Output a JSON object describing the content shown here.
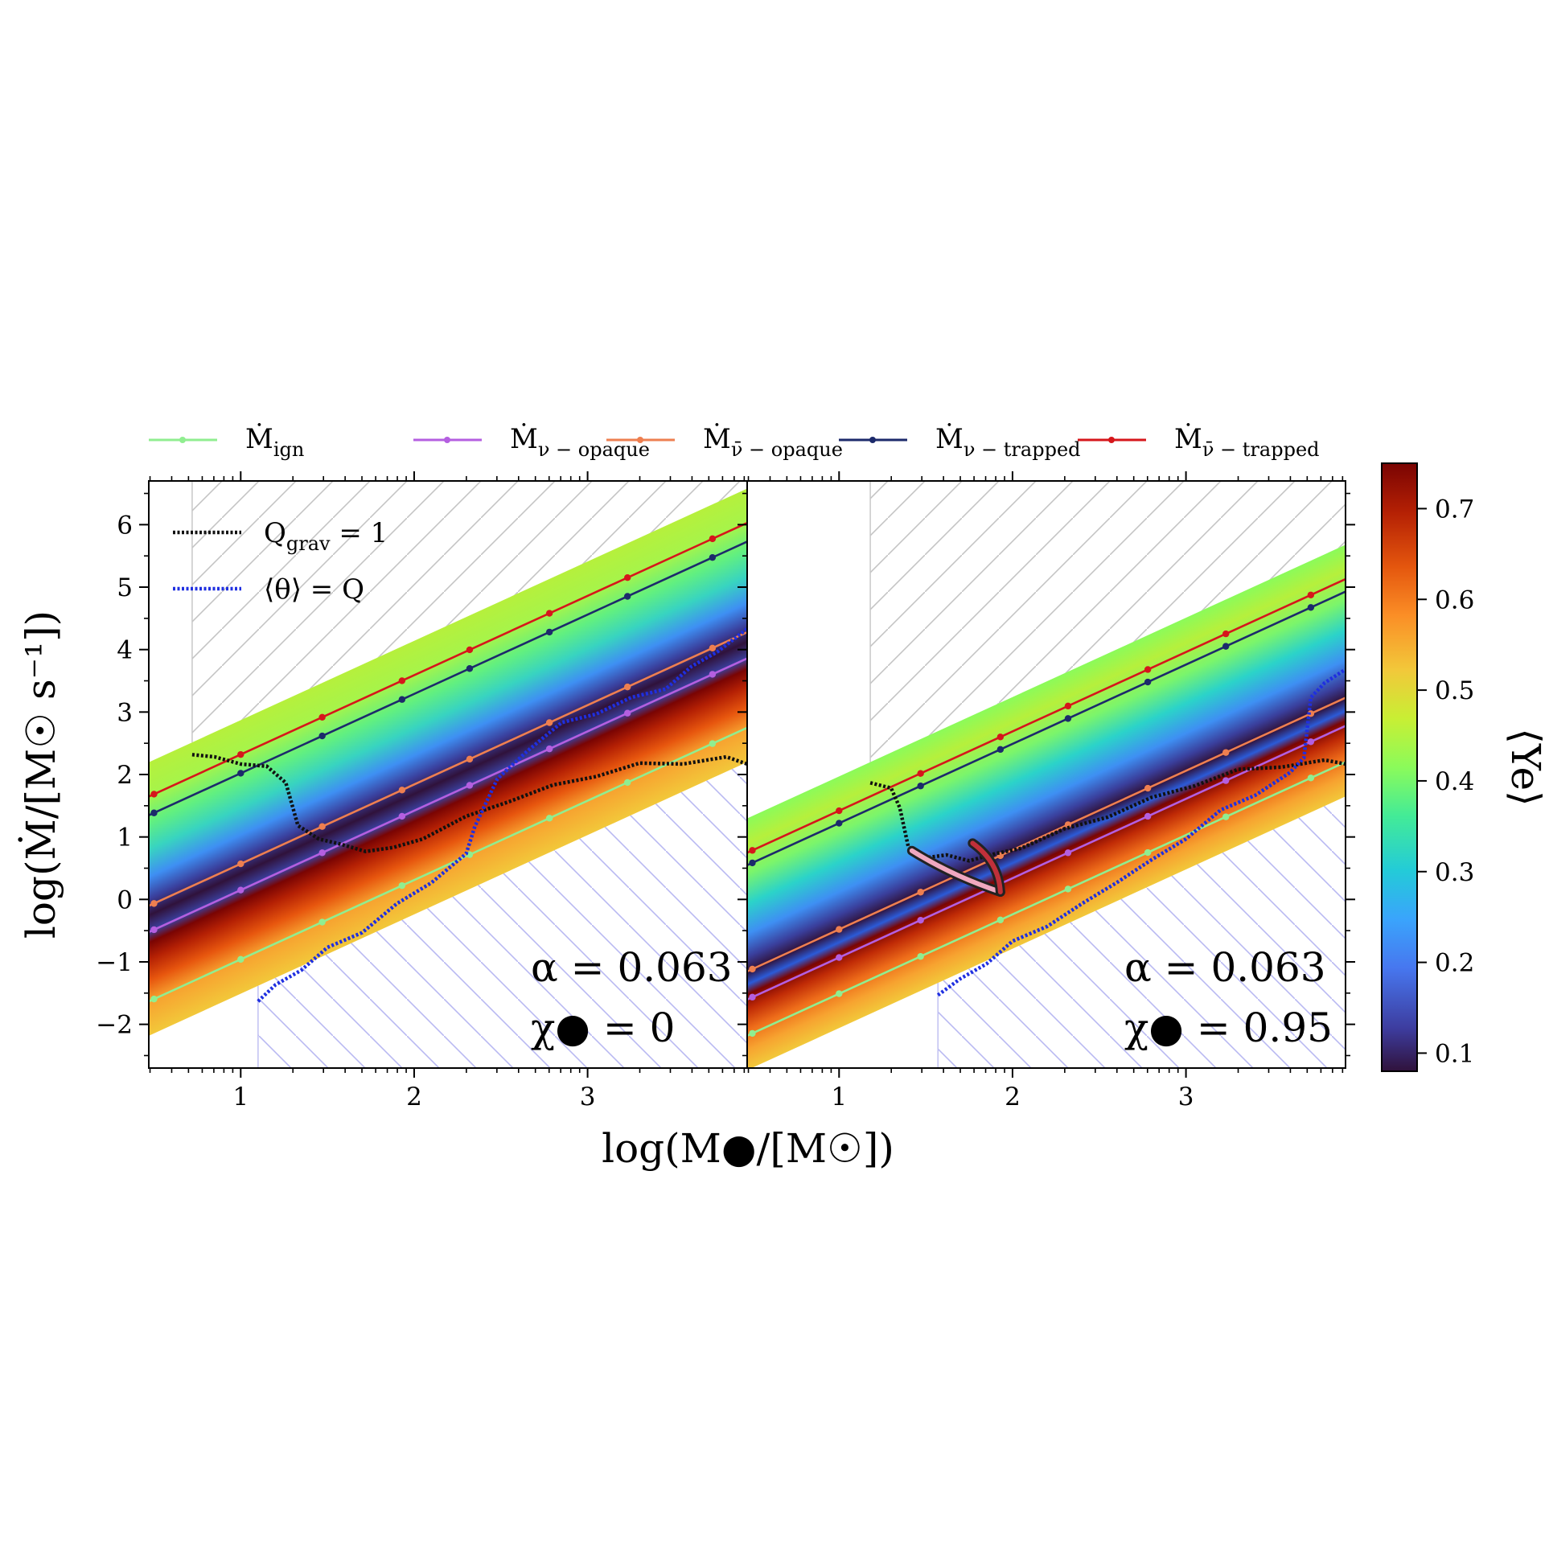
{
  "figure": {
    "ylabel": "log(Ṁ/[M☉ s⁻¹])",
    "xlabel": "log(M●/[M☉])",
    "legend_top": [
      {
        "key": "ign",
        "main": "Ṁ",
        "sub": "ign",
        "color": "#90ee90"
      },
      {
        "key": "nu_opaque",
        "main": "Ṁ",
        "sub": "ν − opaque",
        "color": "#b45fe0"
      },
      {
        "key": "nubar_opaque",
        "main": "Ṁ",
        "sub": "ν̄ − opaque",
        "color": "#ee7f50"
      },
      {
        "key": "nu_trapped",
        "main": "Ṁ",
        "sub": "ν − trapped",
        "color": "#1c2a6b"
      },
      {
        "key": "nubar_trapped",
        "main": "Ṁ",
        "sub": "ν̄ − trapped",
        "color": "#d6161b"
      }
    ],
    "legend_inner": [
      {
        "key": "qgrav",
        "main": "Q",
        "sub": "grav",
        "rhs": " = 1",
        "color": "#111111"
      },
      {
        "key": "theta",
        "main": "⟨θ⟩ = Q",
        "sub": "",
        "rhs": "",
        "color": "#1f2fe0"
      }
    ],
    "colorbar": {
      "label": "⟨Ye⟩",
      "ticks": [
        "0.1",
        "0.2",
        "0.3",
        "0.4",
        "0.5",
        "0.6",
        "0.7"
      ],
      "min": 0.08,
      "max": 0.75
    }
  },
  "chart_data": [
    {
      "type": "heatmap",
      "panel": "left",
      "xlim": [
        0.47,
        3.92
      ],
      "ylim": [
        -2.7,
        6.7
      ],
      "xticks": [
        "1",
        "2",
        "3"
      ],
      "yticks": [
        "−2",
        "−1",
        "0",
        "1",
        "2",
        "3",
        "4",
        "5",
        "6"
      ],
      "annotation_alpha": "α = 0.063",
      "annotation_chi": "χ● = 0",
      "colormap_value": "⟨Ye⟩",
      "series": [
        {
          "name": "Ṁ_ign",
          "slope": 1.27,
          "intercept": -2.23,
          "x": [
            0.5,
            1.0,
            1.47,
            1.93,
            2.32,
            2.78,
            3.23,
            3.72
          ]
        },
        {
          "name": "Ṁ_ν-opaque",
          "slope": 1.27,
          "intercept": -1.12,
          "x": [
            0.5,
            1.0,
            1.47,
            1.93,
            2.32,
            2.78,
            3.23,
            3.72
          ]
        },
        {
          "name": "Ṁ_ν̄-opaque",
          "slope": 1.27,
          "intercept": -0.7,
          "x": [
            0.5,
            1.0,
            1.47,
            1.93,
            2.32,
            2.78,
            3.23,
            3.72
          ]
        },
        {
          "name": "Ṁ_ν-trapped",
          "slope": 1.27,
          "intercept": 0.75,
          "x": [
            0.5,
            1.0,
            1.47,
            1.93,
            2.32,
            2.78,
            3.23,
            3.72
          ]
        },
        {
          "name": "Ṁ_ν̄-trapped",
          "slope": 1.27,
          "intercept": 1.05,
          "x": [
            0.5,
            1.0,
            1.47,
            1.93,
            2.32,
            2.78,
            3.23,
            3.72
          ]
        },
        {
          "name": "Q_grav = 1",
          "x": [
            0.72,
            0.85,
            1.0,
            1.15,
            1.26,
            1.33,
            1.45,
            1.58,
            1.72,
            1.88,
            2.05,
            2.3,
            2.55,
            2.8,
            3.05,
            3.3,
            3.55,
            3.8,
            3.92
          ],
          "y": [
            2.35,
            2.25,
            2.2,
            2.1,
            1.9,
            1.15,
            1.0,
            0.85,
            0.8,
            0.8,
            1.0,
            1.3,
            1.6,
            1.8,
            2.0,
            2.15,
            2.2,
            2.25,
            2.2
          ]
        },
        {
          "name": "⟨θ⟩ = Q",
          "x": [
            1.1,
            1.2,
            1.35,
            1.5,
            1.7,
            1.9,
            2.1,
            2.3,
            2.35,
            2.48,
            2.65,
            2.85,
            3.05,
            3.25,
            3.45,
            3.6,
            3.75,
            3.92
          ],
          "y": [
            -1.6,
            -1.4,
            -1.1,
            -0.8,
            -0.5,
            -0.1,
            0.3,
            0.7,
            1.2,
            1.9,
            2.4,
            2.8,
            3.0,
            3.2,
            3.4,
            3.7,
            4.0,
            4.3
          ]
        }
      ]
    },
    {
      "type": "heatmap",
      "panel": "right",
      "xlim": [
        0.47,
        3.92
      ],
      "ylim": [
        -2.7,
        6.7
      ],
      "xticks": [
        "1",
        "2",
        "3"
      ],
      "annotation_alpha": "α = 0.063",
      "annotation_chi": "χ● = 0.95",
      "colormap_value": "⟨Ye⟩",
      "series": [
        {
          "name": "Ṁ_ign",
          "slope": 1.27,
          "intercept": -2.78,
          "x": [
            0.5,
            1.0,
            1.47,
            1.93,
            2.32,
            2.78,
            3.23,
            3.72
          ]
        },
        {
          "name": "Ṁ_ν-opaque",
          "slope": 1.27,
          "intercept": -2.2,
          "x": [
            0.5,
            1.0,
            1.47,
            1.93,
            2.32,
            2.78,
            3.23,
            3.72
          ]
        },
        {
          "name": "Ṁ_ν̄-opaque",
          "slope": 1.27,
          "intercept": -1.75,
          "x": [
            0.5,
            1.0,
            1.47,
            1.93,
            2.32,
            2.78,
            3.23,
            3.72
          ]
        },
        {
          "name": "Ṁ_ν-trapped",
          "slope": 1.27,
          "intercept": -0.05,
          "x": [
            0.5,
            1.0,
            1.47,
            1.93,
            2.32,
            2.78,
            3.23,
            3.72
          ]
        },
        {
          "name": "Ṁ_ν̄-trapped",
          "slope": 1.27,
          "intercept": 0.15,
          "x": [
            0.5,
            1.0,
            1.47,
            1.93,
            2.32,
            2.78,
            3.23,
            3.72
          ]
        },
        {
          "name": "Q_grav = 1",
          "x": [
            1.18,
            1.3,
            1.35,
            1.4,
            1.5,
            1.62,
            1.75,
            1.9,
            2.05,
            2.3,
            2.55,
            2.8,
            3.05,
            3.3,
            3.55,
            3.8,
            3.92
          ],
          "y": [
            1.9,
            1.75,
            1.5,
            0.8,
            0.7,
            0.68,
            0.65,
            0.7,
            0.85,
            1.1,
            1.35,
            1.6,
            1.85,
            2.05,
            2.15,
            2.2,
            2.2
          ]
        },
        {
          "name": "⟨θ⟩ = Q",
          "x": [
            1.57,
            1.7,
            1.85,
            2.0,
            2.2,
            2.4,
            2.6,
            2.8,
            3.0,
            3.2,
            3.4,
            3.6,
            3.68,
            3.72,
            3.8,
            3.92
          ],
          "y": [
            -1.5,
            -1.3,
            -1.0,
            -0.7,
            -0.4,
            -0.1,
            0.3,
            0.6,
            1.0,
            1.4,
            1.7,
            2.0,
            2.3,
            3.2,
            3.5,
            3.65
          ]
        }
      ]
    }
  ]
}
